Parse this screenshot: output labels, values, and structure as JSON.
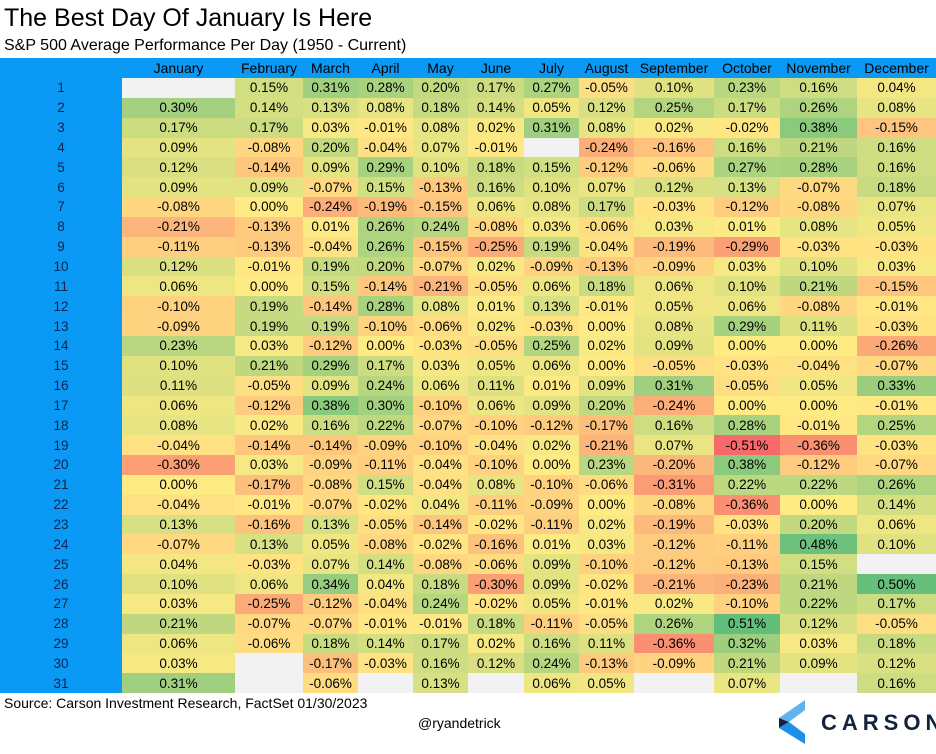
{
  "header": {
    "title": "The Best Day Of January Is Here",
    "subtitle": "S&P 500 Average Performance Per Day (1950 - Current)"
  },
  "footer": {
    "source": "Source: Carson Investment Research, FactSet 01/30/2023",
    "handle": "@ryandetrick",
    "logo": "CARSON"
  },
  "colors": {
    "day_column": "#0a9af5",
    "negative": "#f8696b",
    "neutral": "#ffeb84",
    "positive": "#63be7b",
    "blank": "#f2f2f2"
  },
  "chart_data": {
    "type": "heatmap",
    "title": "The Best Day Of January Is Here",
    "subtitle": "S&P 500 Average Performance Per Day (1950 - Current)",
    "columns": [
      "January",
      "February",
      "March",
      "April",
      "May",
      "June",
      "July",
      "August",
      "September",
      "October",
      "November",
      "December"
    ],
    "rows": [
      {
        "day": "1",
        "values": [
          null,
          "0.15%",
          "0.31%",
          "0.28%",
          "0.20%",
          "0.17%",
          "0.27%",
          "-0.05%",
          "0.10%",
          "0.23%",
          "0.16%",
          "0.04%"
        ]
      },
      {
        "day": "2",
        "values": [
          "0.30%",
          "0.14%",
          "0.13%",
          "0.08%",
          "0.18%",
          "0.14%",
          "0.05%",
          "0.12%",
          "0.25%",
          "0.17%",
          "0.26%",
          "0.08%"
        ]
      },
      {
        "day": "3",
        "values": [
          "0.17%",
          "0.17%",
          "0.03%",
          "-0.01%",
          "0.08%",
          "0.02%",
          "0.31%",
          "0.08%",
          "0.02%",
          "-0.02%",
          "0.38%",
          "-0.15%"
        ]
      },
      {
        "day": "4",
        "values": [
          "0.09%",
          "-0.08%",
          "0.20%",
          "-0.04%",
          "0.07%",
          "-0.01%",
          null,
          "-0.24%",
          "-0.16%",
          "0.16%",
          "0.21%",
          "0.16%"
        ]
      },
      {
        "day": "5",
        "values": [
          "0.12%",
          "-0.14%",
          "0.09%",
          "0.29%",
          "0.10%",
          "0.18%",
          "0.15%",
          "-0.12%",
          "-0.06%",
          "0.27%",
          "0.28%",
          "0.16%"
        ]
      },
      {
        "day": "6",
        "values": [
          "0.09%",
          "0.09%",
          "-0.07%",
          "0.15%",
          "-0.13%",
          "0.16%",
          "0.10%",
          "0.07%",
          "0.12%",
          "0.13%",
          "-0.07%",
          "0.18%"
        ]
      },
      {
        "day": "7",
        "values": [
          "-0.08%",
          "0.00%",
          "-0.24%",
          "-0.19%",
          "-0.15%",
          "0.06%",
          "0.08%",
          "0.17%",
          "-0.03%",
          "-0.12%",
          "-0.08%",
          "0.07%"
        ]
      },
      {
        "day": "8",
        "values": [
          "-0.21%",
          "-0.13%",
          "0.01%",
          "0.26%",
          "0.24%",
          "-0.08%",
          "0.03%",
          "-0.06%",
          "0.03%",
          "0.01%",
          "0.08%",
          "0.05%"
        ]
      },
      {
        "day": "9",
        "values": [
          "-0.11%",
          "-0.13%",
          "-0.04%",
          "0.26%",
          "-0.15%",
          "-0.25%",
          "0.19%",
          "-0.04%",
          "-0.19%",
          "-0.29%",
          "-0.03%",
          "-0.03%"
        ]
      },
      {
        "day": "10",
        "values": [
          "0.12%",
          "-0.01%",
          "0.19%",
          "0.20%",
          "-0.07%",
          "0.02%",
          "-0.09%",
          "-0.13%",
          "-0.09%",
          "0.03%",
          "0.10%",
          "0.03%"
        ]
      },
      {
        "day": "11",
        "values": [
          "0.06%",
          "0.00%",
          "0.15%",
          "-0.14%",
          "-0.21%",
          "-0.05%",
          "0.06%",
          "0.18%",
          "0.06%",
          "0.10%",
          "0.21%",
          "-0.15%"
        ]
      },
      {
        "day": "12",
        "values": [
          "-0.10%",
          "0.19%",
          "-0.14%",
          "0.28%",
          "0.08%",
          "0.01%",
          "0.13%",
          "-0.01%",
          "0.05%",
          "0.06%",
          "-0.08%",
          "-0.01%"
        ]
      },
      {
        "day": "13",
        "values": [
          "-0.09%",
          "0.19%",
          "0.19%",
          "-0.10%",
          "-0.06%",
          "0.02%",
          "-0.03%",
          "0.00%",
          "0.08%",
          "0.29%",
          "0.11%",
          "-0.03%"
        ]
      },
      {
        "day": "14",
        "values": [
          "0.23%",
          "0.03%",
          "-0.12%",
          "0.00%",
          "-0.03%",
          "-0.05%",
          "0.25%",
          "0.02%",
          "0.09%",
          "0.00%",
          "0.00%",
          "-0.26%"
        ]
      },
      {
        "day": "15",
        "values": [
          "0.10%",
          "0.21%",
          "0.29%",
          "0.17%",
          "0.03%",
          "0.05%",
          "0.06%",
          "0.00%",
          "-0.05%",
          "-0.03%",
          "-0.04%",
          "-0.07%"
        ]
      },
      {
        "day": "16",
        "values": [
          "0.11%",
          "-0.05%",
          "0.09%",
          "0.24%",
          "0.06%",
          "0.11%",
          "0.01%",
          "0.09%",
          "0.31%",
          "-0.05%",
          "0.05%",
          "0.33%"
        ]
      },
      {
        "day": "17",
        "values": [
          "0.06%",
          "-0.12%",
          "0.38%",
          "0.30%",
          "-0.10%",
          "0.06%",
          "0.09%",
          "0.20%",
          "-0.24%",
          "0.00%",
          "0.00%",
          "-0.01%"
        ]
      },
      {
        "day": "18",
        "values": [
          "0.08%",
          "0.02%",
          "0.16%",
          "0.22%",
          "-0.07%",
          "-0.10%",
          "-0.12%",
          "-0.17%",
          "0.16%",
          "0.28%",
          "-0.01%",
          "0.25%"
        ]
      },
      {
        "day": "19",
        "values": [
          "-0.04%",
          "-0.14%",
          "-0.14%",
          "-0.09%",
          "-0.10%",
          "-0.04%",
          "0.02%",
          "-0.21%",
          "0.07%",
          "-0.51%",
          "-0.36%",
          "-0.03%"
        ]
      },
      {
        "day": "20",
        "values": [
          "-0.30%",
          "0.03%",
          "-0.09%",
          "-0.11%",
          "-0.04%",
          "-0.10%",
          "0.00%",
          "0.23%",
          "-0.20%",
          "0.38%",
          "-0.12%",
          "-0.07%"
        ]
      },
      {
        "day": "21",
        "values": [
          "0.00%",
          "-0.17%",
          "-0.08%",
          "0.15%",
          "-0.04%",
          "0.08%",
          "-0.10%",
          "-0.06%",
          "-0.31%",
          "0.22%",
          "0.22%",
          "0.26%"
        ]
      },
      {
        "day": "22",
        "values": [
          "-0.04%",
          "-0.01%",
          "-0.07%",
          "-0.02%",
          "0.04%",
          "-0.11%",
          "-0.09%",
          "0.00%",
          "-0.08%",
          "-0.36%",
          "0.00%",
          "0.14%"
        ]
      },
      {
        "day": "23",
        "values": [
          "0.13%",
          "-0.16%",
          "0.13%",
          "-0.05%",
          "-0.14%",
          "-0.02%",
          "-0.11%",
          "0.02%",
          "-0.19%",
          "-0.03%",
          "0.20%",
          "0.06%"
        ]
      },
      {
        "day": "24",
        "values": [
          "-0.07%",
          "0.13%",
          "0.05%",
          "-0.08%",
          "-0.02%",
          "-0.16%",
          "0.01%",
          "0.03%",
          "-0.12%",
          "-0.11%",
          "0.48%",
          "0.10%"
        ]
      },
      {
        "day": "25",
        "values": [
          "0.04%",
          "-0.03%",
          "0.07%",
          "0.14%",
          "-0.08%",
          "-0.06%",
          "0.09%",
          "-0.10%",
          "-0.12%",
          "-0.13%",
          "0.15%",
          null
        ]
      },
      {
        "day": "26",
        "values": [
          "0.10%",
          "0.06%",
          "0.34%",
          "0.04%",
          "0.18%",
          "-0.30%",
          "0.09%",
          "-0.02%",
          "-0.21%",
          "-0.23%",
          "0.21%",
          "0.50%"
        ]
      },
      {
        "day": "27",
        "values": [
          "0.03%",
          "-0.25%",
          "-0.12%",
          "-0.04%",
          "0.24%",
          "-0.02%",
          "0.05%",
          "-0.01%",
          "0.02%",
          "-0.10%",
          "0.22%",
          "0.17%"
        ]
      },
      {
        "day": "28",
        "values": [
          "0.21%",
          "-0.07%",
          "-0.07%",
          "-0.01%",
          "-0.01%",
          "0.18%",
          "-0.11%",
          "-0.05%",
          "0.26%",
          "0.51%",
          "0.12%",
          "-0.05%"
        ]
      },
      {
        "day": "29",
        "values": [
          "0.06%",
          "-0.06%",
          "0.18%",
          "0.14%",
          "0.17%",
          "0.02%",
          "0.16%",
          "0.11%",
          "-0.36%",
          "0.32%",
          "0.03%",
          "0.18%"
        ]
      },
      {
        "day": "30",
        "values": [
          "0.03%",
          null,
          "-0.17%",
          "-0.03%",
          "0.16%",
          "0.12%",
          "0.24%",
          "-0.13%",
          "-0.09%",
          "0.21%",
          "0.09%",
          "0.12%"
        ]
      },
      {
        "day": "31",
        "values": [
          "0.31%",
          null,
          "-0.06%",
          null,
          "0.13%",
          null,
          "0.06%",
          "0.05%",
          null,
          "0.07%",
          null,
          "0.16%"
        ]
      }
    ],
    "color_scale": {
      "min": -0.51,
      "mid": 0,
      "max": 0.51
    }
  }
}
